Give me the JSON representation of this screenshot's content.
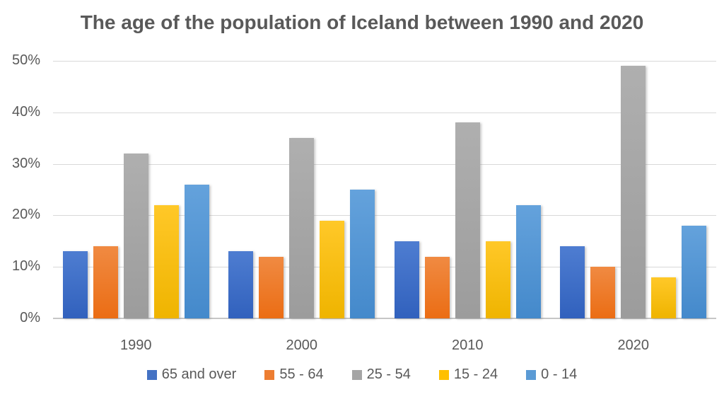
{
  "chart_data": {
    "type": "bar",
    "title": "The age of the population of Iceland between 1990 and 2020",
    "categories": [
      "1990",
      "2000",
      "2010",
      "2020"
    ],
    "series": [
      {
        "name": "65 and over",
        "values": [
          13,
          13,
          15,
          14
        ],
        "color": "#4472C4",
        "gradient": [
          "#4E7DD1",
          "#3161BD"
        ]
      },
      {
        "name": "55 - 64",
        "values": [
          14,
          12,
          12,
          10
        ],
        "color": "#ED7D31",
        "gradient": [
          "#F08A42",
          "#EB6D14"
        ]
      },
      {
        "name": "25 - 54",
        "values": [
          32,
          35,
          38,
          49
        ],
        "color": "#A5A5A5",
        "gradient": [
          "#AFAFAF",
          "#9C9C9C"
        ]
      },
      {
        "name": "15 - 24",
        "values": [
          22,
          19,
          15,
          8
        ],
        "color": "#FFC000",
        "gradient": [
          "#FFC828",
          "#EFB400"
        ]
      },
      {
        "name": "0 - 14",
        "values": [
          26,
          25,
          22,
          18
        ],
        "color": "#5B9BD5",
        "gradient": [
          "#64A2DC",
          "#4489CB"
        ]
      }
    ],
    "xlabel": "",
    "ylabel": "",
    "ylim": [
      0,
      50
    ],
    "ytick_step": 10,
    "ytick_labels": [
      "0%",
      "10%",
      "20%",
      "30%",
      "40%",
      "50%"
    ],
    "grid": true,
    "legend_position": "bottom"
  },
  "colors": {
    "title_text": "#595959",
    "axis_text": "#595959",
    "gridline": "#D9D9D9",
    "axis_line": "#C6C6C6",
    "background": "#FFFFFF"
  }
}
